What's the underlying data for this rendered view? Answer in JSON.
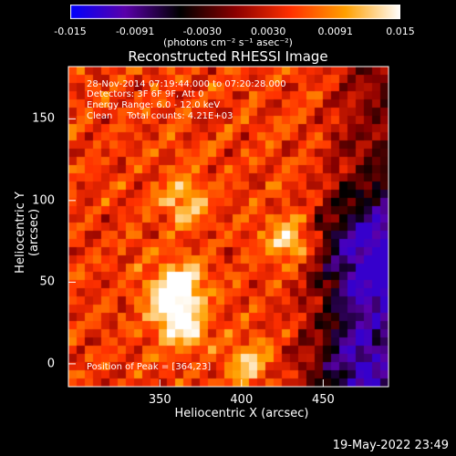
{
  "colorbar": {
    "ticks": [
      "-0.015",
      "-0.0091",
      "-0.0030",
      "0.0030",
      "0.0091",
      "0.015"
    ],
    "tick_values": [
      -0.015,
      -0.0091,
      -0.003,
      0.003,
      0.0091,
      0.015
    ],
    "units_label": "(photons cm⁻² s⁻¹ asec⁻²)",
    "colors": [
      "#0000ff",
      "#5a00aa",
      "#000000",
      "#8b0000",
      "#ff3000",
      "#ffa000",
      "#ffffff"
    ]
  },
  "chart_data": {
    "type": "heatmap",
    "title": "Reconstructed RHESSI Image",
    "xlabel": "Heliocentric X (arcsec)",
    "ylabel": "Heliocentric Y (arcsec)",
    "xlim": [
      294,
      490
    ],
    "ylim": [
      -14,
      182
    ],
    "xticks": [
      "350",
      "400",
      "450"
    ],
    "xtick_values": [
      350,
      400,
      450
    ],
    "yticks": [
      "0",
      "50",
      "100",
      "150"
    ],
    "ytick_values": [
      0,
      50,
      100,
      150
    ],
    "peak_position": [
      364,
      23
    ],
    "hotspots": [
      {
        "x": 364,
        "y": 23,
        "intensity": 1.0
      },
      {
        "x": 356,
        "y": 40,
        "intensity": 0.8
      },
      {
        "x": 363,
        "y": 50,
        "intensity": 0.85
      },
      {
        "x": 428,
        "y": 76,
        "intensity": 0.9
      },
      {
        "x": 365,
        "y": 100,
        "intensity": 0.75
      },
      {
        "x": 405,
        "y": 0,
        "intensity": 0.7
      }
    ],
    "coldspots": [
      {
        "x": 478,
        "y": 78,
        "intensity": -0.6
      },
      {
        "x": 470,
        "y": -5,
        "intensity": -0.7
      },
      {
        "x": 475,
        "y": 45,
        "intensity": -0.5
      }
    ]
  },
  "annotations": {
    "time_range": "28-Nov-2014 07:19:44.000 to 07:20:28.000",
    "detectors": "Detectors: 3F 6F 9F, Att 0",
    "energy": "Energy Range: 6.0 - 12.0 keV",
    "clean": "Clean     Total counts: 4.21E+03",
    "peak": "Position of Peak = [364,23]"
  },
  "timestamp": "19-May-2022 23:49"
}
